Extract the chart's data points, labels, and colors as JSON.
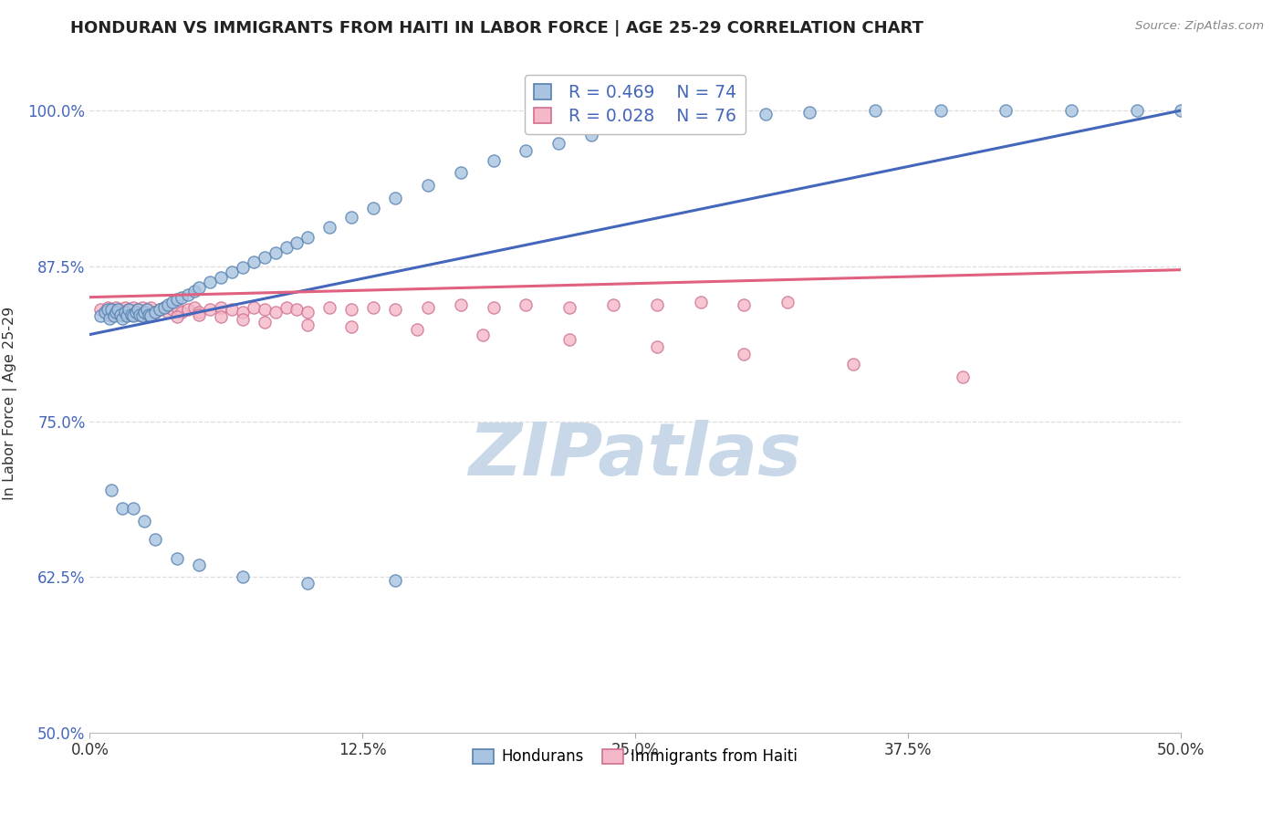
{
  "title": "HONDURAN VS IMMIGRANTS FROM HAITI IN LABOR FORCE | AGE 25-29 CORRELATION CHART",
  "source": "Source: ZipAtlas.com",
  "ylabel": "In Labor Force | Age 25-29",
  "xlim": [
    0.0,
    0.5
  ],
  "ylim": [
    0.5,
    1.03
  ],
  "xtick_labels": [
    "0.0%",
    "12.5%",
    "25.0%",
    "37.5%",
    "50.0%"
  ],
  "xtick_vals": [
    0.0,
    0.125,
    0.25,
    0.375,
    0.5
  ],
  "ytick_labels": [
    "50.0%",
    "62.5%",
    "75.0%",
    "87.5%",
    "100.0%"
  ],
  "ytick_vals": [
    0.5,
    0.625,
    0.75,
    0.875,
    1.0
  ],
  "legend_r_blue": "R = 0.469",
  "legend_n_blue": "N = 74",
  "legend_r_pink": "R = 0.028",
  "legend_n_pink": "N = 76",
  "legend_label_blue": "Hondurans",
  "legend_label_pink": "Immigrants from Haiti",
  "blue_fill": "#A8C4E0",
  "blue_edge": "#5580B0",
  "pink_fill": "#F4B8C8",
  "pink_edge": "#D07090",
  "blue_line": "#4466BB",
  "pink_line": "#E06080",
  "watermark_text": "ZIPatlas",
  "watermark_color": "#C8D8E8",
  "title_color": "#222222",
  "axis_label_color": "#333333",
  "tick_color_y": "#4466BB",
  "tick_color_x": "#333333",
  "grid_color": "#DDDDDD",
  "blue_scatter_x": [
    0.005,
    0.007,
    0.008,
    0.009,
    0.01,
    0.011,
    0.012,
    0.013,
    0.014,
    0.015,
    0.016,
    0.017,
    0.018,
    0.019,
    0.02,
    0.021,
    0.022,
    0.023,
    0.024,
    0.025,
    0.026,
    0.027,
    0.028,
    0.03,
    0.032,
    0.034,
    0.036,
    0.038,
    0.04,
    0.042,
    0.045,
    0.048,
    0.05,
    0.055,
    0.06,
    0.065,
    0.07,
    0.075,
    0.08,
    0.085,
    0.09,
    0.095,
    0.1,
    0.11,
    0.12,
    0.13,
    0.14,
    0.155,
    0.17,
    0.185,
    0.2,
    0.215,
    0.23,
    0.25,
    0.27,
    0.29,
    0.31,
    0.33,
    0.36,
    0.39,
    0.42,
    0.45,
    0.48,
    0.5,
    0.01,
    0.015,
    0.02,
    0.025,
    0.03,
    0.04,
    0.05,
    0.07,
    0.1,
    0.14
  ],
  "blue_scatter_y": [
    0.835,
    0.838,
    0.84,
    0.833,
    0.84,
    0.835,
    0.838,
    0.84,
    0.836,
    0.833,
    0.838,
    0.835,
    0.84,
    0.836,
    0.835,
    0.838,
    0.84,
    0.836,
    0.835,
    0.838,
    0.84,
    0.836,
    0.835,
    0.838,
    0.84,
    0.842,
    0.844,
    0.846,
    0.848,
    0.85,
    0.852,
    0.855,
    0.858,
    0.862,
    0.866,
    0.87,
    0.874,
    0.878,
    0.882,
    0.886,
    0.89,
    0.894,
    0.898,
    0.906,
    0.914,
    0.922,
    0.93,
    0.94,
    0.95,
    0.96,
    0.968,
    0.974,
    0.98,
    0.986,
    0.99,
    0.994,
    0.997,
    0.999,
    1.0,
    1.0,
    1.0,
    1.0,
    1.0,
    1.0,
    0.695,
    0.68,
    0.68,
    0.67,
    0.655,
    0.64,
    0.635,
    0.625,
    0.62,
    0.622
  ],
  "pink_scatter_x": [
    0.005,
    0.007,
    0.008,
    0.009,
    0.01,
    0.011,
    0.012,
    0.013,
    0.014,
    0.015,
    0.016,
    0.017,
    0.018,
    0.019,
    0.02,
    0.021,
    0.022,
    0.023,
    0.024,
    0.025,
    0.026,
    0.027,
    0.028,
    0.03,
    0.032,
    0.034,
    0.036,
    0.038,
    0.04,
    0.042,
    0.045,
    0.048,
    0.05,
    0.055,
    0.06,
    0.065,
    0.07,
    0.075,
    0.08,
    0.085,
    0.09,
    0.095,
    0.1,
    0.11,
    0.12,
    0.13,
    0.14,
    0.155,
    0.17,
    0.185,
    0.2,
    0.22,
    0.24,
    0.26,
    0.28,
    0.3,
    0.32,
    0.01,
    0.015,
    0.02,
    0.025,
    0.03,
    0.04,
    0.05,
    0.06,
    0.07,
    0.08,
    0.1,
    0.12,
    0.15,
    0.18,
    0.22,
    0.26,
    0.3,
    0.35,
    0.4
  ],
  "pink_scatter_y": [
    0.84,
    0.838,
    0.842,
    0.836,
    0.84,
    0.838,
    0.842,
    0.838,
    0.84,
    0.836,
    0.842,
    0.838,
    0.84,
    0.836,
    0.842,
    0.838,
    0.84,
    0.836,
    0.842,
    0.838,
    0.84,
    0.836,
    0.842,
    0.838,
    0.84,
    0.842,
    0.838,
    0.84,
    0.842,
    0.838,
    0.84,
    0.842,
    0.838,
    0.84,
    0.842,
    0.84,
    0.838,
    0.842,
    0.84,
    0.838,
    0.842,
    0.84,
    0.838,
    0.842,
    0.84,
    0.842,
    0.84,
    0.842,
    0.844,
    0.842,
    0.844,
    0.842,
    0.844,
    0.844,
    0.846,
    0.844,
    0.846,
    0.84,
    0.838,
    0.836,
    0.834,
    0.838,
    0.834,
    0.836,
    0.834,
    0.832,
    0.83,
    0.828,
    0.826,
    0.824,
    0.82,
    0.816,
    0.81,
    0.804,
    0.796,
    0.786
  ]
}
